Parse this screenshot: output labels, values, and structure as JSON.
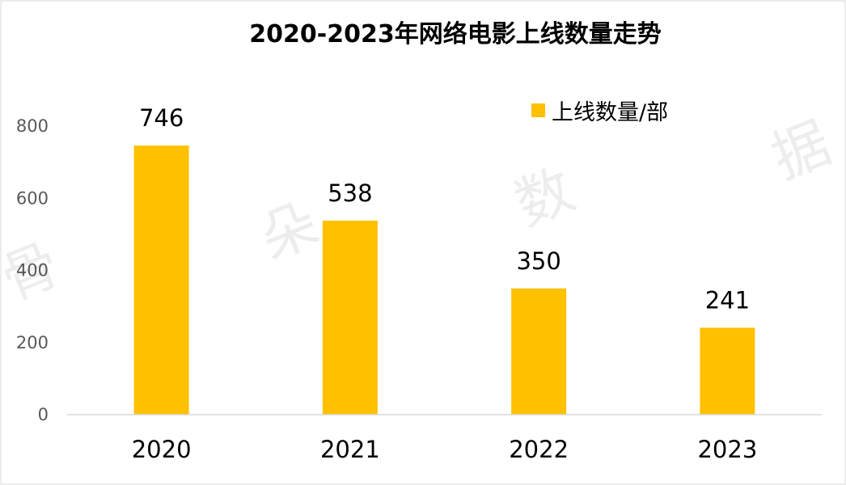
{
  "chart_data": {
    "type": "bar",
    "title": "2020-2023年网络电影上线数量走势",
    "categories": [
      "2020",
      "2021",
      "2022",
      "2023"
    ],
    "series": [
      {
        "name": "上线数量/部",
        "values": [
          746,
          538,
          350,
          241
        ],
        "color": "#FFC000"
      }
    ],
    "data_labels": [
      "746",
      "538",
      "350",
      "241"
    ],
    "yticks": [
      "0",
      "200",
      "400",
      "600",
      "800"
    ],
    "ylim": [
      0,
      800
    ],
    "grid": false,
    "legend_position": "top-right"
  },
  "watermark": [
    "骨",
    "朵",
    "数",
    "据"
  ]
}
